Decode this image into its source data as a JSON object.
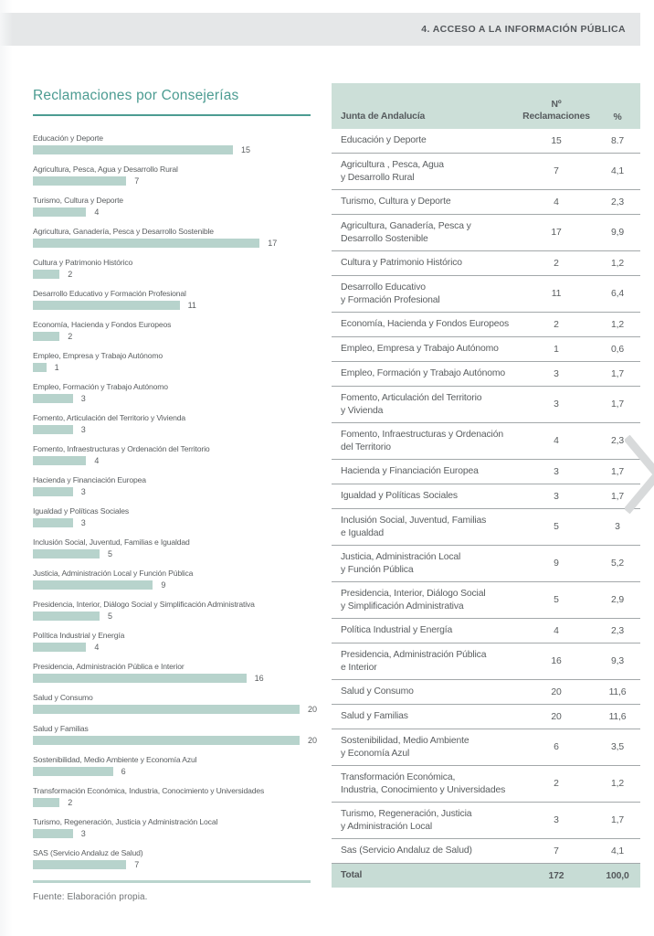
{
  "page": {
    "header": "4. ACCESO A LA INFORMACIÓN PÚBLICA",
    "source_note": "Fuente: Elaboración propia."
  },
  "colors": {
    "accent_teal": "#4c9c92",
    "bar_fill": "#b7d3cc",
    "table_header_bg": "#ccdfd8",
    "total_row_bg": "#c7dcd5",
    "band_bg": "#e5e7e8",
    "text_gray": "#5a5e60",
    "chevron_gray": "#d8dadb"
  },
  "chart_data": {
    "type": "bar",
    "orientation": "horizontal",
    "title": "Reclamaciones por Consejerías",
    "xlabel": "",
    "ylabel": "",
    "xlim": [
      0,
      20
    ],
    "grid": false,
    "categories": [
      "Educación y Deporte",
      "Agricultura, Pesca, Agua y Desarrollo Rural",
      "Turismo, Cultura y Deporte",
      "Agricultura, Ganadería, Pesca y Desarrollo Sostenible",
      "Cultura y Patrimonio Histórico",
      "Desarrollo Educativo y Formación Profesional",
      "Economía, Hacienda y Fondos Europeos",
      "Empleo, Empresa y Trabajo Autónomo",
      "Empleo, Formación y Trabajo Autónomo",
      "Fomento, Articulación del Territorio y Vivienda",
      "Fomento, Infraestructuras y Ordenación del Territorio",
      "Hacienda y Financiación Europea",
      "Igualdad y Políticas Sociales",
      "Inclusión Social, Juventud, Familias e Igualdad",
      "Justicia, Administración Local y Función Pública",
      "Presidencia, Interior, Diálogo Social y Simplificación Administrativa",
      "Política Industrial y Energía",
      "Presidencia, Administración Pública e Interior",
      "Salud y Consumo",
      "Salud y Familias",
      "Sostenibilidad, Medio Ambiente y Economía Azul",
      "Transformación Económica, Industria, Conocimiento y Universidades",
      "Turismo, Regeneración, Justicia y Administración Local",
      "SAS (Servicio Andaluz de Salud)"
    ],
    "values": [
      15,
      7,
      4,
      17,
      2,
      11,
      2,
      1,
      3,
      3,
      4,
      3,
      3,
      5,
      9,
      5,
      4,
      16,
      20,
      20,
      6,
      2,
      3,
      7
    ]
  },
  "table": {
    "header": {
      "name": "Junta de Andalucía",
      "n_line1": "Nº",
      "n_line2": "Reclamaciones",
      "pct": "%"
    },
    "rows": [
      {
        "label": "Educación y Deporte",
        "n": "15",
        "pct": "8.7"
      },
      {
        "label": "Agricultura , Pesca, Agua\ny Desarrollo Rural",
        "n": "7",
        "pct": "4,1"
      },
      {
        "label": "Turismo, Cultura y Deporte",
        "n": "4",
        "pct": "2,3"
      },
      {
        "label": "Agricultura, Ganadería, Pesca y\nDesarrollo Sostenible",
        "n": "17",
        "pct": "9,9"
      },
      {
        "label": "Cultura y Patrimonio Histórico",
        "n": "2",
        "pct": "1,2"
      },
      {
        "label": "Desarrollo Educativo\ny Formación Profesional",
        "n": "11",
        "pct": "6,4"
      },
      {
        "label": "Economía, Hacienda y Fondos Europeos",
        "n": "2",
        "pct": "1,2"
      },
      {
        "label": "Empleo, Empresa y Trabajo Autónomo",
        "n": "1",
        "pct": "0,6"
      },
      {
        "label": "Empleo, Formación y Trabajo Autónomo",
        "n": "3",
        "pct": "1,7"
      },
      {
        "label": "Fomento, Articulación del Territorio\ny Vivienda",
        "n": "3",
        "pct": "1,7"
      },
      {
        "label": "Fomento, Infraestructuras y Ordenación\ndel Territorio",
        "n": "4",
        "pct": "2,3"
      },
      {
        "label": "Hacienda y Financiación Europea",
        "n": "3",
        "pct": "1,7"
      },
      {
        "label": "Igualdad y Políticas Sociales",
        "n": "3",
        "pct": "1,7"
      },
      {
        "label": "Inclusión Social, Juventud, Familias\ne Igualdad",
        "n": "5",
        "pct": "3"
      },
      {
        "label": "Justicia, Administración Local\ny Función Pública",
        "n": "9",
        "pct": "5,2"
      },
      {
        "label": "Presidencia, Interior, Diálogo Social\ny Simplificación Administrativa",
        "n": "5",
        "pct": "2,9"
      },
      {
        "label": "Política Industrial y Energía",
        "n": "4",
        "pct": "2,3"
      },
      {
        "label": "Presidencia, Administración Pública\ne Interior",
        "n": "16",
        "pct": "9,3"
      },
      {
        "label": "Salud y Consumo",
        "n": "20",
        "pct": "11,6"
      },
      {
        "label": "Salud y Familias",
        "n": "20",
        "pct": "11,6"
      },
      {
        "label": "Sostenibilidad, Medio Ambiente\ny Economía Azul",
        "n": "6",
        "pct": "3,5"
      },
      {
        "label": "Transformación Económica,\nIndustria, Conocimiento y Universidades",
        "n": "2",
        "pct": "1,2"
      },
      {
        "label": "Turismo, Regeneración, Justicia\ny Administración Local",
        "n": "3",
        "pct": "1,7"
      },
      {
        "label": "Sas (Servicio Andaluz de Salud)",
        "n": "7",
        "pct": "4,1"
      }
    ],
    "total": {
      "label": "Total",
      "n": "172",
      "pct": "100,0"
    }
  }
}
